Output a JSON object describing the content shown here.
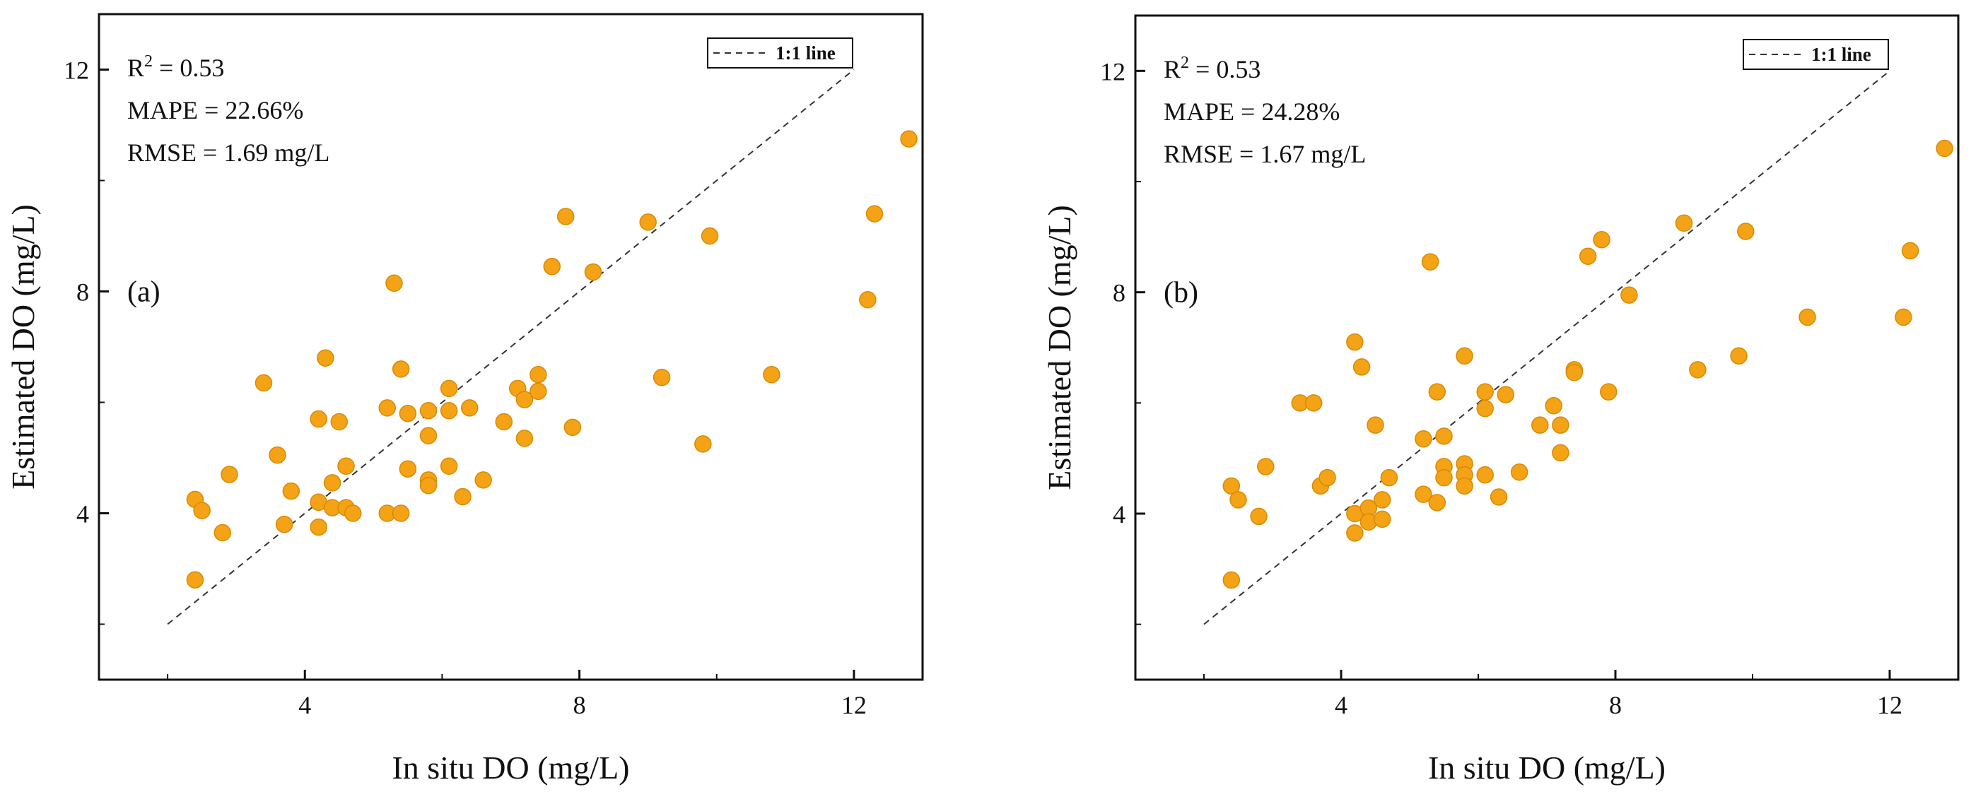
{
  "chart_data": [
    {
      "type": "scatter",
      "panel_label": "(a)",
      "xlabel": "In situ DO (mg/L)",
      "ylabel": "Estimated DO (mg/L)",
      "xlim": [
        1.0,
        13.0
      ],
      "ylim": [
        1.0,
        13.0
      ],
      "xticks": [
        4,
        8,
        12
      ],
      "yticks": [
        4,
        8,
        12
      ],
      "stats": {
        "r2_prefix": "R",
        "r2_sup": "2",
        "r2_value": " = 0.53",
        "mape": "MAPE = 22.66%",
        "rmse": "RMSE = 1.69 mg/L"
      },
      "legend": {
        "label": "1:1 line",
        "position": "top-right"
      },
      "reference_line": {
        "x": [
          2.0,
          12.0
        ],
        "y": [
          2.0,
          12.0
        ]
      },
      "marker_color": "#f5a316",
      "marker_edge": "#d98a00",
      "points": [
        [
          2.4,
          2.8
        ],
        [
          2.4,
          4.25
        ],
        [
          2.5,
          4.05
        ],
        [
          2.8,
          3.65
        ],
        [
          2.9,
          4.7
        ],
        [
          3.4,
          6.35
        ],
        [
          3.6,
          5.05
        ],
        [
          3.7,
          3.8
        ],
        [
          3.8,
          4.4
        ],
        [
          4.2,
          4.2
        ],
        [
          4.2,
          3.75
        ],
        [
          4.2,
          5.7
        ],
        [
          4.3,
          6.8
        ],
        [
          4.4,
          4.55
        ],
        [
          4.4,
          4.1
        ],
        [
          4.5,
          5.65
        ],
        [
          4.6,
          4.85
        ],
        [
          4.6,
          4.1
        ],
        [
          4.7,
          4.0
        ],
        [
          5.2,
          5.9
        ],
        [
          5.2,
          4.0
        ],
        [
          5.3,
          8.15
        ],
        [
          5.4,
          6.6
        ],
        [
          5.4,
          4.0
        ],
        [
          5.5,
          4.8
        ],
        [
          5.5,
          5.8
        ],
        [
          5.8,
          5.85
        ],
        [
          5.8,
          5.4
        ],
        [
          5.8,
          4.6
        ],
        [
          5.8,
          4.5
        ],
        [
          6.1,
          6.25
        ],
        [
          6.1,
          5.85
        ],
        [
          6.1,
          4.85
        ],
        [
          6.3,
          4.3
        ],
        [
          6.4,
          5.9
        ],
        [
          6.6,
          4.6
        ],
        [
          6.9,
          5.65
        ],
        [
          7.1,
          6.25
        ],
        [
          7.2,
          6.05
        ],
        [
          7.2,
          5.35
        ],
        [
          7.4,
          6.5
        ],
        [
          7.4,
          6.2
        ],
        [
          7.6,
          8.45
        ],
        [
          7.8,
          9.35
        ],
        [
          7.9,
          5.55
        ],
        [
          8.2,
          8.35
        ],
        [
          9.0,
          9.25
        ],
        [
          9.2,
          6.45
        ],
        [
          9.8,
          5.25
        ],
        [
          9.9,
          9.0
        ],
        [
          10.8,
          6.5
        ],
        [
          12.2,
          7.85
        ],
        [
          12.3,
          9.4
        ],
        [
          12.8,
          10.75
        ]
      ]
    },
    {
      "type": "scatter",
      "panel_label": "(b)",
      "xlabel": "In situ DO (mg/L)",
      "ylabel": "Estimated DO (mg/L)",
      "xlim": [
        1.0,
        13.0
      ],
      "ylim": [
        1.0,
        13.0
      ],
      "xticks": [
        4,
        8,
        12
      ],
      "yticks": [
        4,
        8,
        12
      ],
      "stats": {
        "r2_prefix": "R",
        "r2_sup": "2",
        "r2_value": " = 0.53",
        "mape": "MAPE = 24.28%",
        "rmse": "RMSE = 1.67 mg/L"
      },
      "legend": {
        "label": "1:1 line",
        "position": "top-right"
      },
      "reference_line": {
        "x": [
          2.0,
          12.0
        ],
        "y": [
          2.0,
          12.0
        ]
      },
      "marker_color": "#f5a316",
      "marker_edge": "#d98a00",
      "points": [
        [
          2.4,
          2.8
        ],
        [
          2.4,
          4.5
        ],
        [
          2.5,
          4.25
        ],
        [
          2.8,
          3.95
        ],
        [
          2.9,
          4.85
        ],
        [
          3.4,
          6.0
        ],
        [
          3.6,
          6.0
        ],
        [
          3.7,
          4.5
        ],
        [
          3.8,
          4.65
        ],
        [
          4.2,
          7.1
        ],
        [
          4.2,
          4.0
        ],
        [
          4.2,
          3.65
        ],
        [
          4.3,
          6.65
        ],
        [
          4.4,
          4.1
        ],
        [
          4.4,
          3.85
        ],
        [
          4.5,
          5.6
        ],
        [
          4.6,
          4.25
        ],
        [
          4.6,
          3.9
        ],
        [
          4.7,
          4.65
        ],
        [
          5.2,
          5.35
        ],
        [
          5.2,
          4.35
        ],
        [
          5.3,
          8.55
        ],
        [
          5.4,
          6.2
        ],
        [
          5.4,
          4.2
        ],
        [
          5.5,
          5.4
        ],
        [
          5.5,
          4.85
        ],
        [
          5.5,
          4.65
        ],
        [
          5.8,
          6.85
        ],
        [
          5.8,
          4.9
        ],
        [
          5.8,
          4.7
        ],
        [
          5.8,
          4.5
        ],
        [
          6.1,
          6.2
        ],
        [
          6.1,
          5.9
        ],
        [
          6.1,
          4.7
        ],
        [
          6.3,
          4.3
        ],
        [
          6.4,
          6.15
        ],
        [
          6.6,
          4.75
        ],
        [
          6.9,
          5.6
        ],
        [
          7.1,
          5.95
        ],
        [
          7.2,
          5.6
        ],
        [
          7.2,
          5.1
        ],
        [
          7.4,
          6.6
        ],
        [
          7.4,
          6.55
        ],
        [
          7.6,
          8.65
        ],
        [
          7.8,
          8.95
        ],
        [
          7.9,
          6.2
        ],
        [
          8.2,
          7.95
        ],
        [
          9.0,
          9.25
        ],
        [
          9.2,
          6.6
        ],
        [
          9.8,
          6.85
        ],
        [
          9.9,
          9.1
        ],
        [
          10.8,
          7.55
        ],
        [
          12.2,
          7.55
        ],
        [
          12.3,
          8.75
        ],
        [
          12.8,
          10.6
        ]
      ]
    }
  ]
}
